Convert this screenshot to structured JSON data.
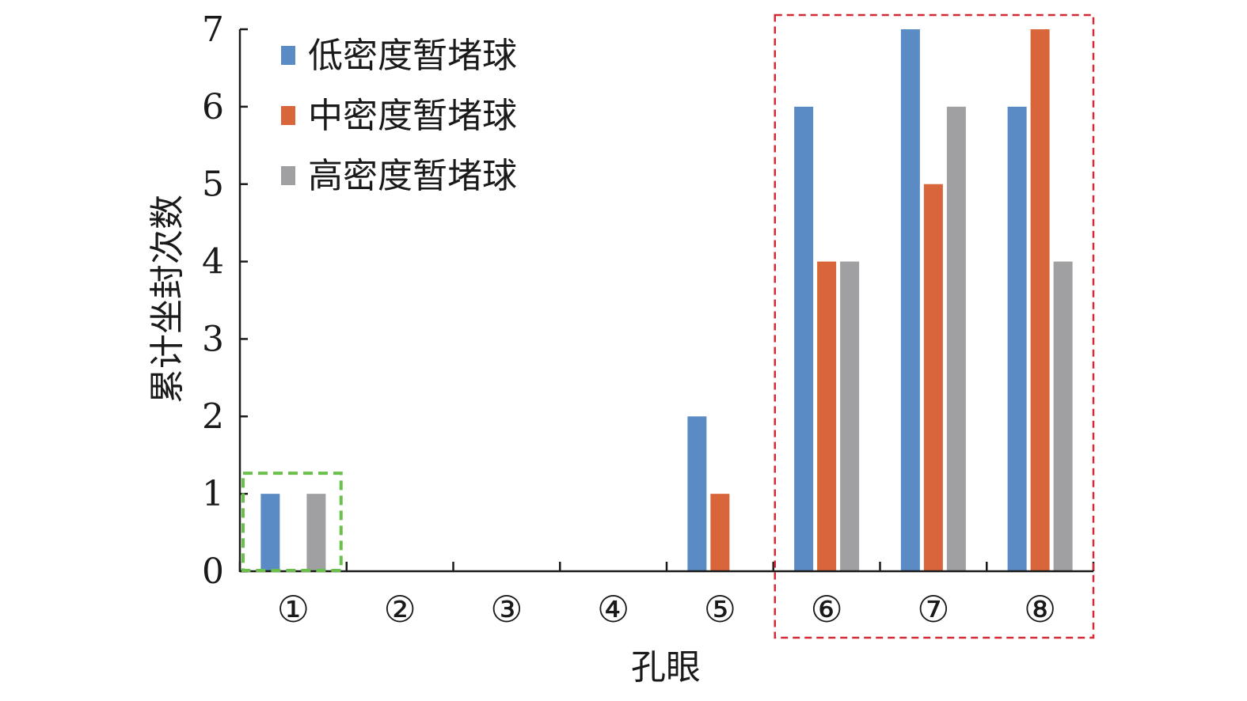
{
  "chart_data": {
    "type": "bar",
    "xlabel": "孔眼",
    "ylabel": "累计坐封次数",
    "categories": [
      "①",
      "②",
      "③",
      "④",
      "⑤",
      "⑥",
      "⑦",
      "⑧"
    ],
    "ylim": [
      0,
      7
    ],
    "yticks": [
      "0",
      "1",
      "2",
      "3",
      "4",
      "5",
      "6",
      "7"
    ],
    "grid": false,
    "legend_position": "top-left",
    "series": [
      {
        "name": "低密度暂堵球",
        "color": "#5b8bc4",
        "values": [
          1,
          0,
          0,
          0,
          2,
          6,
          7,
          6
        ]
      },
      {
        "name": "中密度暂堵球",
        "color": "#d9663a",
        "values": [
          0,
          0,
          0,
          0,
          1,
          4,
          5,
          7
        ]
      },
      {
        "name": "高密度暂堵球",
        "color": "#a0a0a2",
        "values": [
          1,
          0,
          0,
          0,
          0,
          4,
          6,
          4
        ]
      }
    ],
    "annotations": [
      {
        "type": "dashed-box",
        "color": "#6ac04a",
        "encloses": [
          "①"
        ]
      },
      {
        "type": "dashed-box",
        "color": "#d22a35",
        "encloses": [
          "⑥",
          "⑦",
          "⑧"
        ]
      }
    ]
  }
}
